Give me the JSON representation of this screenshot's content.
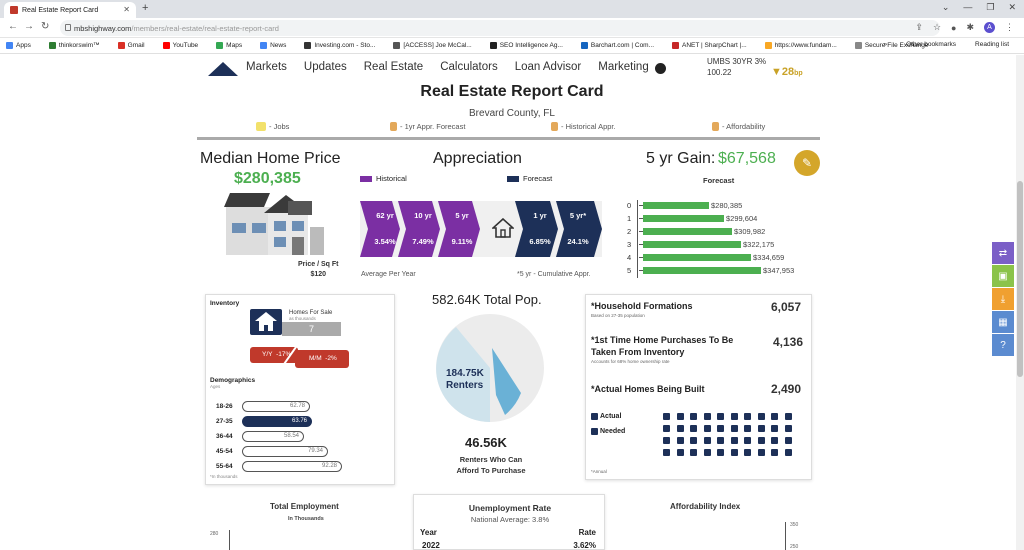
{
  "browser": {
    "tab_title": "Real Estate Report Card",
    "url_domain": "mbshighway.com",
    "url_path": "/members/real-estate/real-estate-report-card",
    "bookmarks": [
      "Apps",
      "thinkorswim™",
      "Gmail",
      "YouTube",
      "Maps",
      "News",
      "Investing.com - Sto...",
      "[ACCESS] Joe McCal...",
      "SEO Intelligence Ag...",
      "Barchart.com | Com...",
      "ANET | SharpChart |...",
      "https://www.fundam...",
      "Secure File Exchange"
    ],
    "bookmarks_overflow": "»",
    "other_bookmarks": "Other bookmarks",
    "reading_list": "Reading list",
    "avatar": "A"
  },
  "nav": {
    "items": [
      "Markets",
      "Updates",
      "Real Estate",
      "Calculators",
      "Loan Advisor",
      "Marketing"
    ],
    "ticker_name": "UMBS 30YR 3%",
    "ticker_price": "100.22",
    "ticker_change": "28",
    "ticker_unit": "bp"
  },
  "header": {
    "title": "Real Estate Report Card",
    "location": "Brevard County, FL",
    "legend": [
      "- Jobs",
      "- 1yr Appr. Forecast",
      "- Historical Appr.",
      "- Affordability"
    ]
  },
  "median": {
    "title": "Median Home Price",
    "value": "$280,385",
    "price_sqft_label": "Price / Sq Ft",
    "price_sqft": "$120"
  },
  "appreciation": {
    "title": "Appreciation",
    "historical_label": "Historical",
    "forecast_label": "Forecast",
    "historical": [
      {
        "period": "62 yr",
        "value": "3.54%"
      },
      {
        "period": "10 yr",
        "value": "7.49%"
      },
      {
        "period": "5 yr",
        "value": "9.11%"
      }
    ],
    "forecast": [
      {
        "period": "1 yr",
        "value": "6.85%"
      },
      {
        "period": "5 yr*",
        "value": "24.1%"
      }
    ],
    "footer_left": "Average Per Year",
    "footer_right": "*5 yr - Cumulative Appr."
  },
  "gain": {
    "label": "5 yr Gain:",
    "value": "$67,568",
    "forecast_title": "Forecast"
  },
  "chart_data": {
    "type": "bar",
    "title": "Forecast",
    "categories": [
      "0",
      "1",
      "2",
      "3",
      "4",
      "5"
    ],
    "values": [
      280385,
      299604,
      309982,
      322175,
      334659,
      347953
    ],
    "labels": [
      "$280,385",
      "$299,604",
      "$309,982",
      "$322,175",
      "$334,659",
      "$347,953"
    ],
    "orientation": "horizontal",
    "color": "#4caf50"
  },
  "inventory": {
    "title": "Inventory",
    "hfs_label": "Homes For Sale",
    "hfs_sub": "as thousands",
    "hfs_value": "7",
    "yy_label": "Y/Y",
    "yy_value": "-17%",
    "mm_label": "M/M",
    "mm_value": "-2%",
    "demographics_title": "Demographics",
    "demographics_sub": "Ages",
    "ages": [
      {
        "range": "18-26",
        "value": "62.78"
      },
      {
        "range": "27-35",
        "value": "63.76"
      },
      {
        "range": "36-44",
        "value": "58.54"
      },
      {
        "range": "45-54",
        "value": "79.34"
      },
      {
        "range": "55-64",
        "value": "92.28"
      }
    ],
    "footnote": "*In thousands"
  },
  "population": {
    "title": "582.64K Total Pop.",
    "renters_value": "184.75K",
    "renters_label": "Renters",
    "afford_value": "46.56K",
    "afford_label": "Renters Who Can Afford To Purchase"
  },
  "household": {
    "hf_label": "*Household Formations",
    "hf_sub": "Based on 27-35 population",
    "hf_value": "6,057",
    "ft_label": "*1st Time Home Purchases To Be Taken From Inventory",
    "ft_sub": "Accounts for 68% home ownership rate",
    "ft_value": "4,136",
    "built_label": "*Actual Homes Being Built",
    "built_value": "2,490",
    "actual_label": "Actual",
    "needed_label": "Needed",
    "footnote": "*Annual"
  },
  "bottom": {
    "employment_title": "Total Employment",
    "employment_sub": "In Thousands",
    "employment_tick": "280",
    "unemp_title": "Unemployment Rate",
    "unemp_sub": "National Average: 3.8%",
    "year_head": "Year",
    "rate_head": "Rate",
    "year": "2022",
    "rate": "3.62%",
    "afford_title": "Affordability Index",
    "afford_tick1": "350",
    "afford_tick2": "250"
  }
}
